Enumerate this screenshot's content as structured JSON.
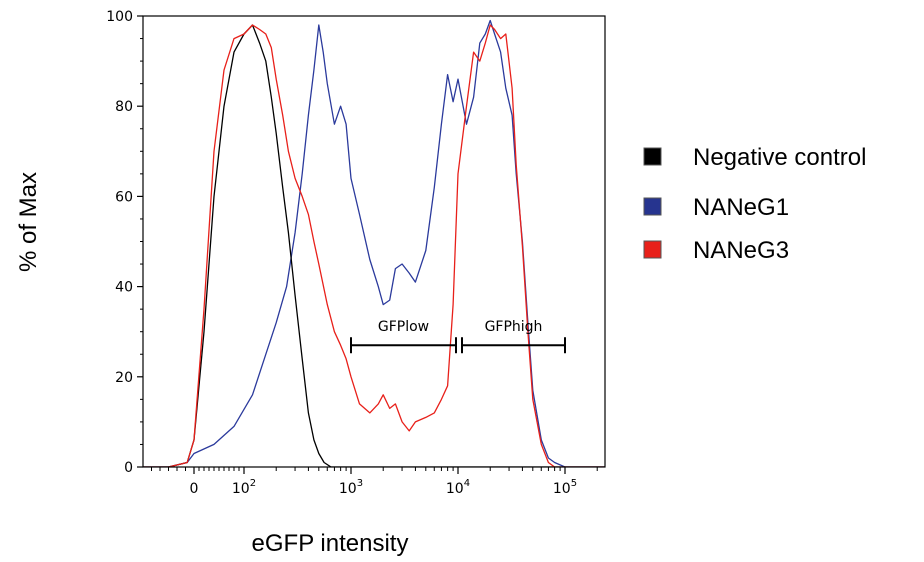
{
  "chart_data": {
    "type": "line",
    "title": "",
    "xlabel": "eGFP intensity",
    "ylabel": "% of Max",
    "x_scale": "biexponential (linear near 0, log above 10^2)",
    "xlim": [
      -300,
      250000
    ],
    "ylim": [
      0,
      100
    ],
    "grid": false,
    "legend_position": "right",
    "x_ticks": [
      {
        "value": 0,
        "label": "0"
      },
      {
        "value": 100,
        "label": "10",
        "sup": "2"
      },
      {
        "value": 1000,
        "label": "10",
        "sup": "3"
      },
      {
        "value": 10000,
        "label": "10",
        "sup": "4"
      },
      {
        "value": 100000,
        "label": "10",
        "sup": "5"
      }
    ],
    "y_ticks": [
      0,
      20,
      40,
      60,
      80,
      100
    ],
    "series": [
      {
        "name": "Negative control",
        "color": "#000000",
        "legend_color": "#000000",
        "x": [
          -300,
          -150,
          -40,
          0,
          20,
          40,
          60,
          80,
          100,
          120,
          140,
          160,
          180,
          200,
          230,
          260,
          300,
          350,
          400,
          450,
          500,
          560,
          650,
          800,
          1000,
          2000,
          10000,
          100000,
          250000
        ],
        "y": [
          0,
          0,
          1,
          6,
          30,
          60,
          80,
          92,
          96,
          98,
          94,
          90,
          82,
          74,
          62,
          52,
          38,
          24,
          12,
          6,
          3,
          1,
          0,
          0,
          0,
          0,
          0,
          0,
          0
        ]
      },
      {
        "name": "NANeG1",
        "color": "#2b3a9c",
        "legend_color": "#26348f",
        "x": [
          -300,
          -150,
          -40,
          0,
          40,
          80,
          120,
          160,
          200,
          250,
          300,
          350,
          400,
          450,
          500,
          550,
          600,
          700,
          800,
          900,
          1000,
          1200,
          1500,
          1800,
          2000,
          2300,
          2600,
          3000,
          3500,
          4000,
          5000,
          6000,
          7000,
          8000,
          9000,
          10000,
          12000,
          14000,
          16000,
          18000,
          20000,
          22000,
          25000,
          28000,
          32000,
          35000,
          40000,
          45000,
          50000,
          60000,
          70000,
          80000,
          100000,
          250000
        ],
        "y": [
          0,
          0,
          1,
          3,
          5,
          9,
          16,
          25,
          32,
          40,
          52,
          65,
          78,
          88,
          98,
          92,
          85,
          76,
          80,
          76,
          64,
          56,
          46,
          40,
          36,
          37,
          44,
          45,
          43,
          41,
          48,
          62,
          76,
          87,
          81,
          86,
          76,
          82,
          94,
          96,
          99,
          96,
          92,
          84,
          78,
          65,
          50,
          32,
          17,
          6,
          2,
          1,
          0,
          0
        ]
      },
      {
        "name": "NANeG3",
        "color": "#e8201a",
        "legend_color": "#e8201a",
        "x": [
          -300,
          -150,
          -40,
          0,
          20,
          40,
          60,
          80,
          100,
          120,
          140,
          160,
          180,
          200,
          230,
          260,
          300,
          350,
          400,
          450,
          500,
          600,
          700,
          800,
          900,
          1000,
          1200,
          1500,
          1800,
          2000,
          2300,
          2600,
          3000,
          3500,
          4000,
          5000,
          6000,
          7000,
          8000,
          9000,
          10000,
          12000,
          14000,
          16000,
          18000,
          20000,
          22000,
          25000,
          28000,
          32000,
          35000,
          40000,
          45000,
          50000,
          60000,
          70000,
          80000,
          100000,
          250000
        ],
        "y": [
          0,
          0,
          1,
          6,
          35,
          70,
          88,
          95,
          96,
          98,
          97,
          96,
          93,
          86,
          78,
          70,
          64,
          60,
          56,
          50,
          45,
          36,
          30,
          27,
          24,
          20,
          14,
          12,
          14,
          16,
          13,
          14,
          10,
          8,
          10,
          11,
          12,
          15,
          18,
          36,
          65,
          80,
          92,
          90,
          94,
          98,
          97,
          95,
          96,
          84,
          67,
          49,
          30,
          15,
          5,
          1,
          0,
          0,
          0
        ]
      }
    ],
    "annotations": [
      {
        "label": "GFPlow",
        "x_start": 1000,
        "x_end": 10000,
        "y": 27
      },
      {
        "label": "GFPhigh",
        "x_start": 10000,
        "x_end": 100000,
        "y": 27
      }
    ]
  }
}
